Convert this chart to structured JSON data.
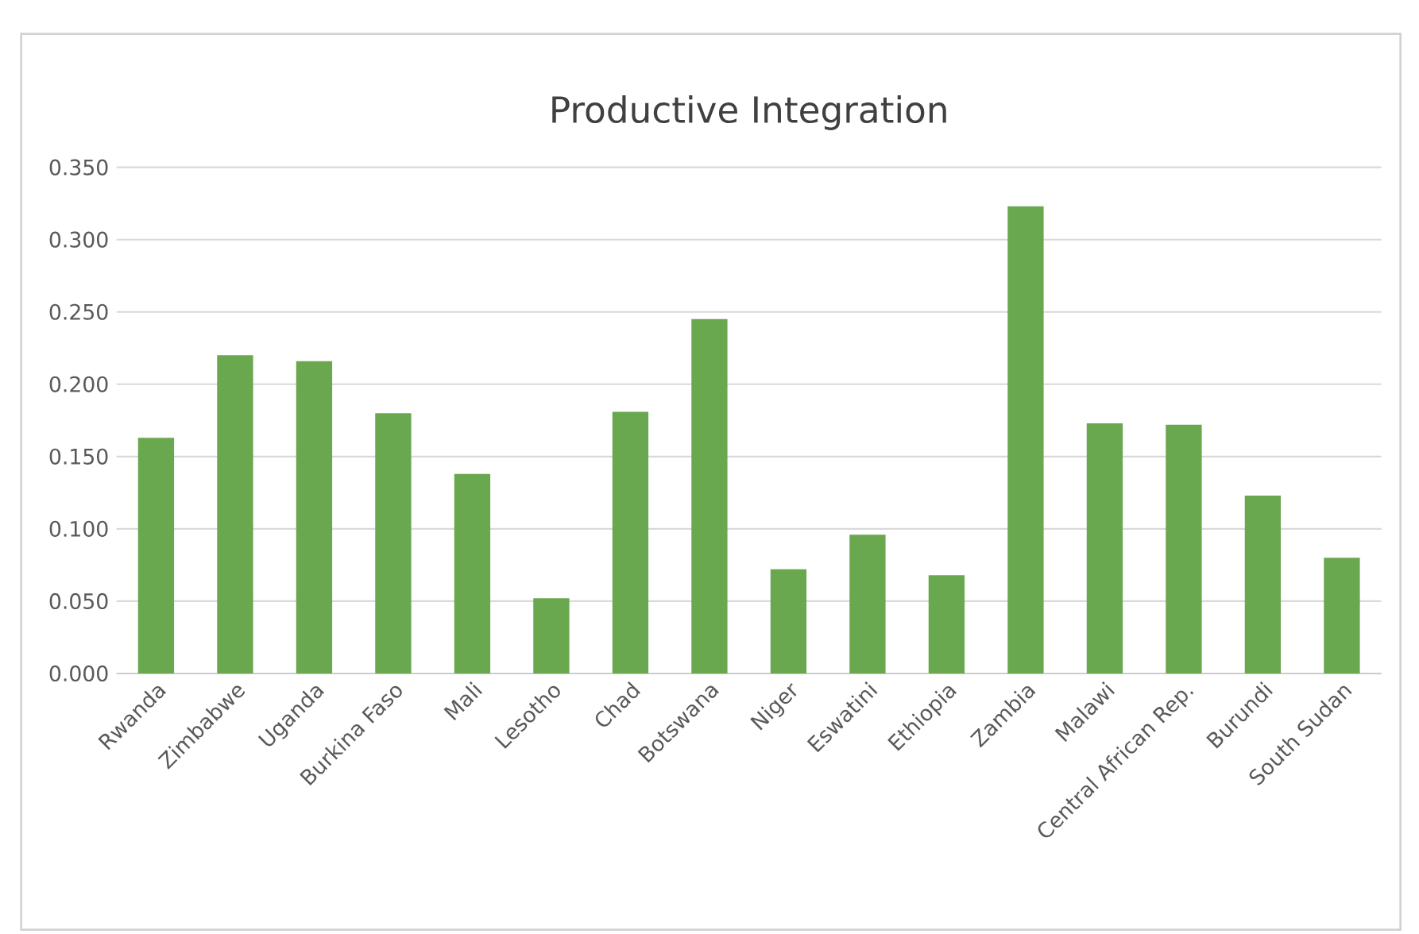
{
  "chart_data": {
    "type": "bar",
    "title": "Productive Integration",
    "categories": [
      "Rwanda",
      "Zimbabwe",
      "Uganda",
      "Burkina Faso",
      "Mali",
      "Lesotho",
      "Chad",
      "Botswana",
      "Niger",
      "Eswatini",
      "Ethiopia",
      "Zambia",
      "Malawi",
      "Central African Rep.",
      "Burundi",
      "South Sudan"
    ],
    "values": [
      0.163,
      0.22,
      0.216,
      0.18,
      0.138,
      0.052,
      0.181,
      0.245,
      0.072,
      0.096,
      0.068,
      0.323,
      0.173,
      0.172,
      0.123,
      0.08
    ],
    "color": "#6aa84f",
    "ylim": [
      0,
      0.35
    ],
    "yticks": [
      {
        "value": 0,
        "label": "0.000"
      },
      {
        "value": 0.05,
        "label": "0.050"
      },
      {
        "value": 0.1,
        "label": "0.100"
      },
      {
        "value": 0.15,
        "label": "0.150"
      },
      {
        "value": 0.2,
        "label": "0.200"
      },
      {
        "value": 0.25,
        "label": "0.250"
      },
      {
        "value": 0.3,
        "label": "0.300"
      },
      {
        "value": 0.35,
        "label": "0.350"
      }
    ],
    "grid": "y"
  }
}
